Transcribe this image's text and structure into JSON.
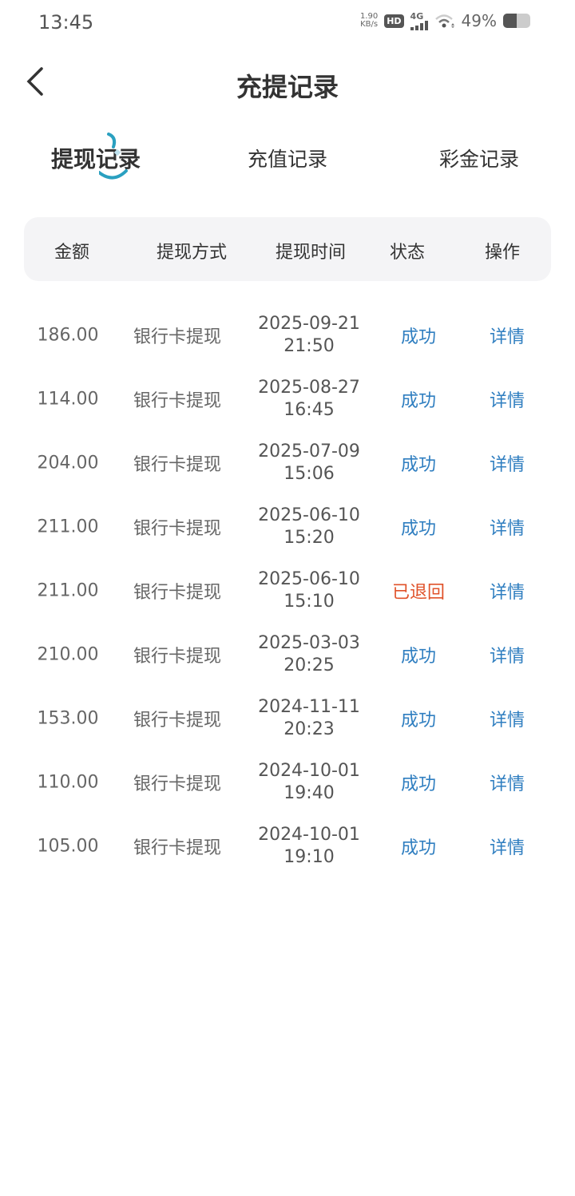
{
  "status_bar": {
    "time": "13:45",
    "speed_value": "1.90",
    "speed_unit": "KB/s",
    "hd": "HD",
    "network": "4G",
    "battery": "49%",
    "battery_level": 49
  },
  "header": {
    "title": "充提记录",
    "back_icon": "chevron-left-icon"
  },
  "tabs": [
    {
      "label": "提现记录",
      "active": true
    },
    {
      "label": "充值记录",
      "active": false
    },
    {
      "label": "彩金记录",
      "active": false
    }
  ],
  "table": {
    "headers": [
      "金额",
      "提现方式",
      "提现时间",
      "状态",
      "操作"
    ],
    "colors": {
      "success": "#2f7ec0",
      "returned": "#e0522a"
    },
    "rows": [
      {
        "amount": "186.00",
        "method": "银行卡提现",
        "date": "2025-09-21",
        "time": "21:50",
        "status": "成功",
        "action": "详情"
      },
      {
        "amount": "114.00",
        "method": "银行卡提现",
        "date": "2025-08-27",
        "time": "16:45",
        "status": "成功",
        "action": "详情"
      },
      {
        "amount": "204.00",
        "method": "银行卡提现",
        "date": "2025-07-09",
        "time": "15:06",
        "status": "成功",
        "action": "详情"
      },
      {
        "amount": "211.00",
        "method": "银行卡提现",
        "date": "2025-06-10",
        "time": "15:20",
        "status": "成功",
        "action": "详情"
      },
      {
        "amount": "211.00",
        "method": "银行卡提现",
        "date": "2025-06-10",
        "time": "15:10",
        "status": "已退回",
        "action": "详情"
      },
      {
        "amount": "210.00",
        "method": "银行卡提现",
        "date": "2025-03-03",
        "time": "20:25",
        "status": "成功",
        "action": "详情"
      },
      {
        "amount": "153.00",
        "method": "银行卡提现",
        "date": "2024-11-11",
        "time": "20:23",
        "status": "成功",
        "action": "详情"
      },
      {
        "amount": "110.00",
        "method": "银行卡提现",
        "date": "2024-10-01",
        "time": "19:40",
        "status": "成功",
        "action": "详情"
      },
      {
        "amount": "105.00",
        "method": "银行卡提现",
        "date": "2024-10-01",
        "time": "19:10",
        "status": "成功",
        "action": "详情"
      }
    ]
  }
}
